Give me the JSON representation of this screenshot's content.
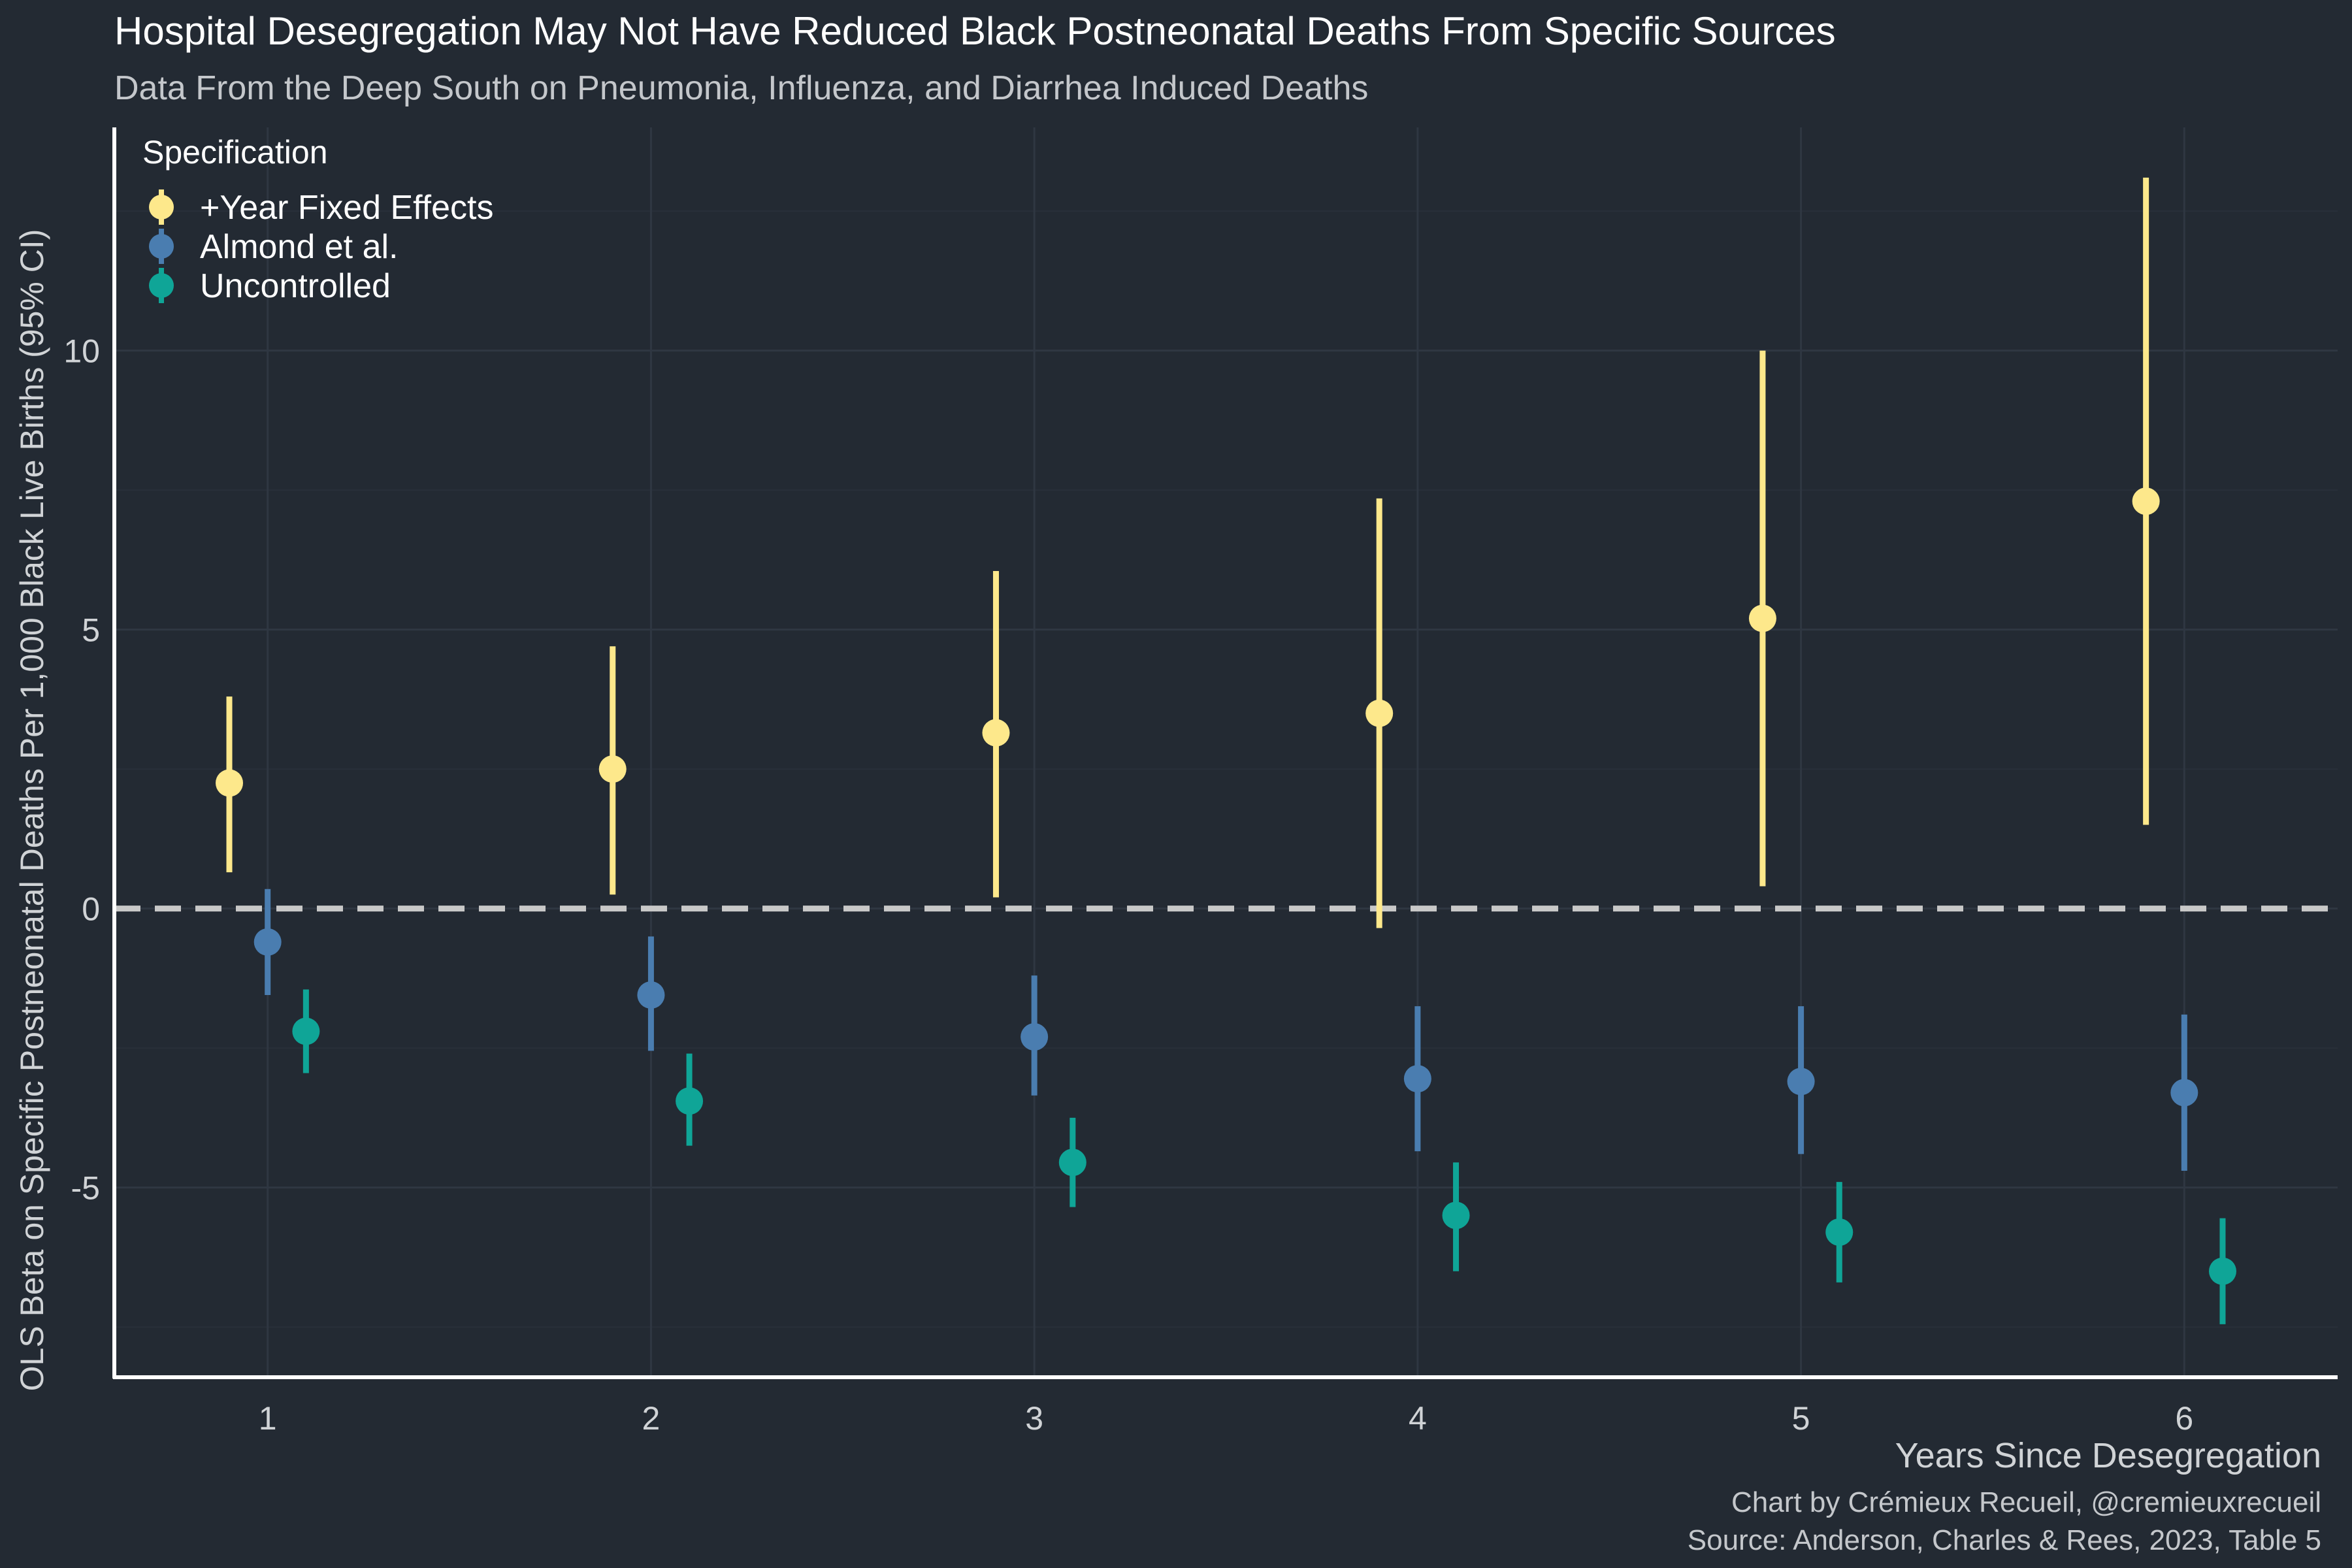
{
  "colors": {
    "background": "#232a33",
    "grid": "#2f3742",
    "axis_line": "#ffffff",
    "zero_line": "#c8c8c8",
    "title": "#ffffff",
    "subtitle": "#c4c7cb",
    "text": "#d0d3d6",
    "series": {
      "year_fe": "#fde88b",
      "almond": "#4a7db0",
      "uncontrolled": "#0fa597"
    }
  },
  "chart_data": {
    "type": "scatter",
    "subtype": "point-range (coefficient plot with 95% CI error bars)",
    "title": "Hospital Desegregation May Not Have Reduced Black Postneonatal Deaths From Specific Sources",
    "subtitle": "Data From the Deep South on Pneumonia, Influenza, and Diarrhea Induced Deaths",
    "xlabel": "Years Since Desegregation",
    "ylabel": "OLS Beta on Specific Postneonatal Deaths Per 1,000 Black Live Births (95% CI)",
    "xlim": [
      0.6,
      6.4
    ],
    "ylim": [
      -8.4,
      14.0
    ],
    "x_ticks": [
      1,
      2,
      3,
      4,
      5,
      6
    ],
    "y_ticks": [
      -5,
      0,
      5,
      10
    ],
    "grid": true,
    "reference_line": {
      "y": 0,
      "style": "dashed"
    },
    "legend": {
      "title": "Specification",
      "placement": "top-left"
    },
    "series": [
      {
        "key": "year_fe",
        "name": "+Year Fixed Effects",
        "dodge": -0.1,
        "points": [
          {
            "x": 1,
            "estimate": 2.25,
            "low": 0.65,
            "high": 3.8
          },
          {
            "x": 2,
            "estimate": 2.5,
            "low": 0.25,
            "high": 4.7
          },
          {
            "x": 3,
            "estimate": 3.15,
            "low": 0.2,
            "high": 6.05
          },
          {
            "x": 4,
            "estimate": 3.5,
            "low": -0.35,
            "high": 7.35
          },
          {
            "x": 5,
            "estimate": 5.2,
            "low": 0.4,
            "high": 10.0
          },
          {
            "x": 6,
            "estimate": 7.3,
            "low": 1.5,
            "high": 13.1
          }
        ]
      },
      {
        "key": "almond",
        "name": "Almond et al.",
        "dodge": 0.0,
        "points": [
          {
            "x": 1,
            "estimate": -0.6,
            "low": -1.55,
            "high": 0.35
          },
          {
            "x": 2,
            "estimate": -1.55,
            "low": -2.55,
            "high": -0.5
          },
          {
            "x": 3,
            "estimate": -2.3,
            "low": -3.35,
            "high": -1.2
          },
          {
            "x": 4,
            "estimate": -3.05,
            "low": -4.35,
            "high": -1.75
          },
          {
            "x": 5,
            "estimate": -3.1,
            "low": -4.4,
            "high": -1.75
          },
          {
            "x": 6,
            "estimate": -3.3,
            "low": -4.7,
            "high": -1.9
          }
        ]
      },
      {
        "key": "uncontrolled",
        "name": "Uncontrolled",
        "dodge": 0.1,
        "points": [
          {
            "x": 1,
            "estimate": -2.2,
            "low": -2.95,
            "high": -1.45
          },
          {
            "x": 2,
            "estimate": -3.45,
            "low": -4.25,
            "high": -2.6
          },
          {
            "x": 3,
            "estimate": -4.55,
            "low": -5.35,
            "high": -3.75
          },
          {
            "x": 4,
            "estimate": -5.5,
            "low": -6.5,
            "high": -4.55
          },
          {
            "x": 5,
            "estimate": -5.8,
            "low": -6.7,
            "high": -4.9
          },
          {
            "x": 6,
            "estimate": -6.5,
            "low": -7.45,
            "high": -5.55
          }
        ]
      }
    ],
    "caption": [
      "Chart by Crémieux Recueil, @cremieuxrecueil",
      "Source: Anderson, Charles & Rees, 2023, Table 5"
    ]
  }
}
